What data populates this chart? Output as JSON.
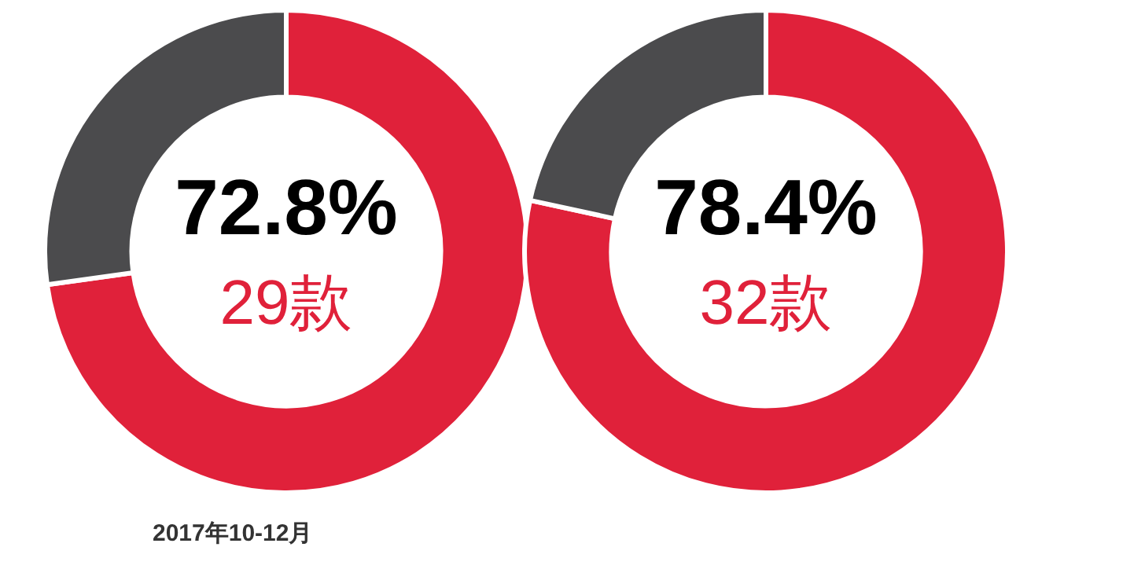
{
  "chart_data": [
    {
      "type": "donut",
      "categories": [
        null,
        null
      ],
      "values": [
        72.8,
        27.2
      ],
      "colors": [
        "#e0213a",
        "#4b4b4d"
      ],
      "value_labels": [
        "72.8%",
        null
      ],
      "annotations": [
        "29款",
        "2017年10-12月"
      ],
      "legend": false
    },
    {
      "type": "donut",
      "categories": [
        null,
        null
      ],
      "values": [
        78.4,
        21.6
      ],
      "colors": [
        "#e0213a",
        "#4b4b4d"
      ],
      "value_labels": [
        "78.4%",
        null
      ],
      "annotations": [
        "32款"
      ],
      "legend": false
    }
  ]
}
